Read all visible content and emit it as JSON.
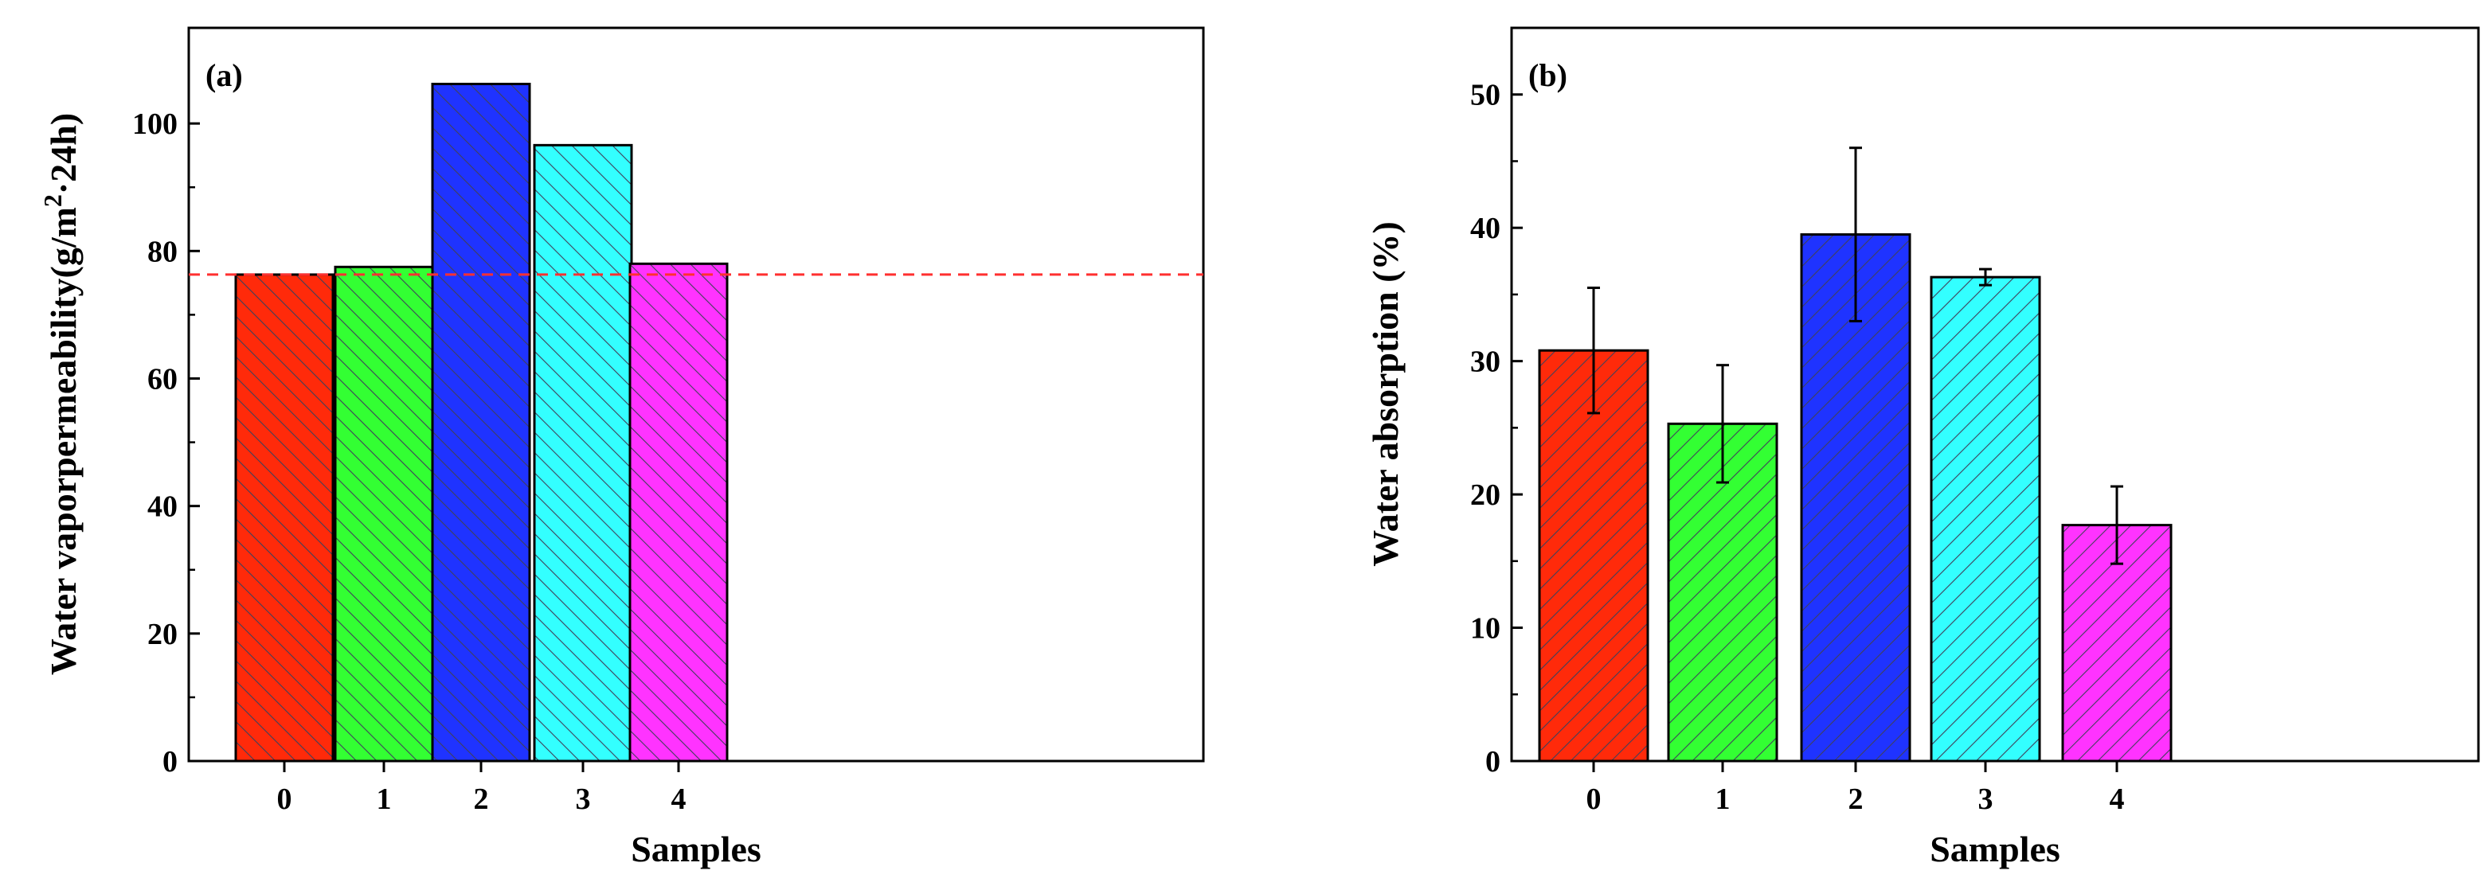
{
  "chart_data": [
    {
      "type": "bar",
      "panel_label": "(a)",
      "title": "",
      "categories": [
        "0",
        "1",
        "2",
        "3",
        "4"
      ],
      "values": [
        76.3,
        77.5,
        106.2,
        96.6,
        78.0
      ],
      "xlabel": "Samples",
      "ylabel": {
        "main": "Water vaporpermeability(g/m",
        "superscript": "2",
        "tail": "·24h)"
      },
      "ylim": [
        0,
        115
      ],
      "yticks": [
        0,
        20,
        40,
        60,
        80,
        100
      ],
      "reference_line": {
        "value": 76.3,
        "style": "dashed",
        "color": "#ff3030"
      },
      "bar_colors": [
        "#ff2a0a",
        "#33ff33",
        "#1f33ff",
        "#33ffff",
        "#ff33ff"
      ],
      "hatch_color": "#40405a",
      "hatch_direction": "backslash"
    },
    {
      "type": "bar",
      "panel_label": "(b)",
      "title": "",
      "categories": [
        "0",
        "1",
        "2",
        "3",
        "4"
      ],
      "values": [
        30.8,
        25.3,
        39.5,
        36.3,
        17.7
      ],
      "errors": [
        4.7,
        4.4,
        6.5,
        0.6,
        2.9
      ],
      "xlabel": "Samples",
      "ylabel": {
        "main": "Water absorption (%)",
        "superscript": "",
        "tail": ""
      },
      "ylim": [
        0,
        55
      ],
      "yticks": [
        0,
        10,
        20,
        30,
        40,
        50
      ],
      "bar_colors": [
        "#ff2a0a",
        "#33ff33",
        "#1f33ff",
        "#33ffff",
        "#ff33ff"
      ],
      "hatch_color": "#40405a",
      "hatch_direction": "slash"
    }
  ]
}
